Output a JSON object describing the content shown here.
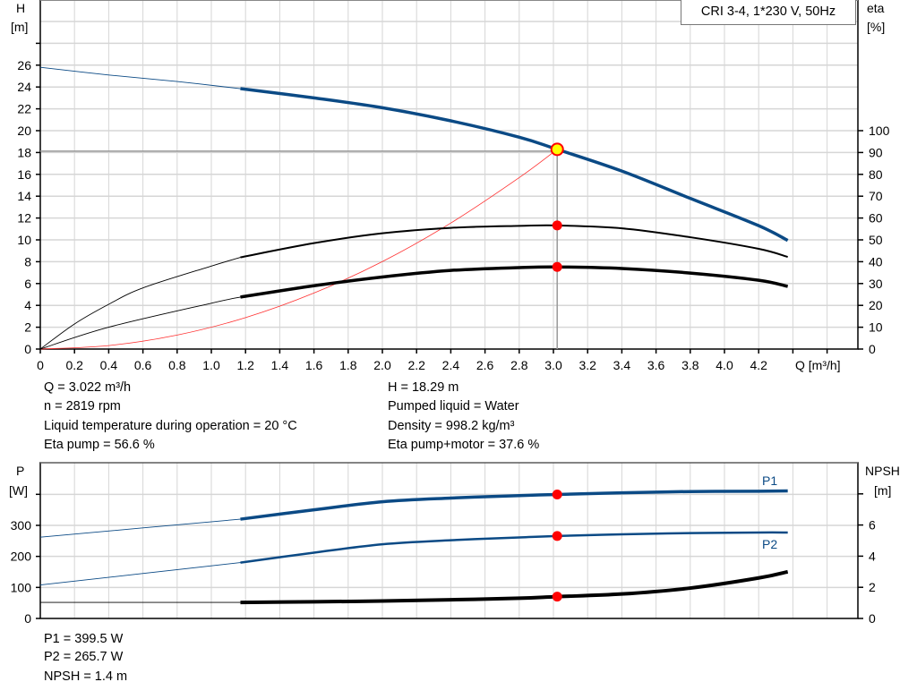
{
  "legend": "CRI 3-4, 1*230 V, 50Hz",
  "colors": {
    "head": "#0b4a85",
    "eta": "#000000",
    "system": "#ff3030",
    "marker": "#ff0000",
    "op_point": "#ffff00",
    "grid": "#d6d6d6"
  },
  "chart_data": [
    {
      "type": "line",
      "xlabel": "Q [m³/h]",
      "ylabel": "H\n[m]",
      "ylabel_left": [
        "H",
        "[m]"
      ],
      "ylabel_right": [
        "eta",
        "[%]"
      ],
      "xlim": [
        0,
        4.78
      ],
      "ylim_left": [
        0,
        32
      ],
      "ylim_right": [
        0,
        131
      ],
      "grid": true,
      "x_ticks": [
        "0",
        "0.2",
        "0.4",
        "0.6",
        "0.8",
        "1.0",
        "1.2",
        "1.4",
        "1.6",
        "1.8",
        "2.0",
        "2.2",
        "2.4",
        "2.6",
        "2.8",
        "3.0",
        "3.2",
        "3.4",
        "3.6",
        "3.8",
        "4.0",
        "4.2"
      ],
      "y_ticks_left": [
        "0",
        "2",
        "4",
        "6",
        "8",
        "10",
        "12",
        "14",
        "16",
        "18",
        "20",
        "22",
        "24",
        "26"
      ],
      "y_ticks_right": [
        "0",
        "10",
        "20",
        "30",
        "40",
        "50",
        "60",
        "70",
        "80",
        "90",
        "100"
      ],
      "series": [
        {
          "key": "H",
          "axis": "left",
          "color": "#0b4a85",
          "x": [
            0,
            0.4,
            0.8,
            1.17,
            1.6,
            2.0,
            2.4,
            2.8,
            3.022,
            3.4,
            3.8,
            4.2,
            4.37
          ],
          "y": [
            25.8,
            25.1,
            24.5,
            23.85,
            23.0,
            22.1,
            20.9,
            19.4,
            18.29,
            16.3,
            13.8,
            11.3,
            9.95
          ]
        },
        {
          "key": "eta_pump",
          "axis": "right",
          "color": "#000000",
          "x": [
            0,
            0.2,
            0.4,
            0.6,
            1.0,
            1.17,
            1.6,
            2.0,
            2.4,
            2.8,
            3.022,
            3.4,
            3.8,
            4.2,
            4.37
          ],
          "y": [
            0,
            11.5,
            20.5,
            28,
            38,
            42,
            48.5,
            53,
            55.5,
            56.4,
            56.6,
            55.3,
            51.2,
            45.9,
            42.2
          ]
        },
        {
          "key": "eta_pump_motor",
          "axis": "right",
          "color": "#000000",
          "x": [
            0,
            0.4,
            1.0,
            1.17,
            1.6,
            2.0,
            2.4,
            2.8,
            3.022,
            3.4,
            3.8,
            4.2,
            4.37
          ],
          "y": [
            0,
            10,
            21,
            23.8,
            29,
            33,
            36,
            37.3,
            37.6,
            36.9,
            34.8,
            31.5,
            28.7
          ]
        },
        {
          "key": "system_curve",
          "axis": "left",
          "color": "#ff3030",
          "x": [
            0,
            0.4,
            0.8,
            1.2,
            1.6,
            2.0,
            2.4,
            2.8,
            3.022
          ],
          "y": [
            0,
            0.32,
            1.28,
            2.88,
            5.13,
            8.01,
            11.54,
            15.7,
            18.29
          ]
        }
      ],
      "operating_point": {
        "Q": 3.022,
        "H": 18.29,
        "eta_pump": 56.6,
        "eta_pump_motor": 37.6
      }
    },
    {
      "type": "line",
      "ylabel_left": [
        "P",
        "[W]"
      ],
      "ylabel_right": [
        "NPSH",
        "[m]"
      ],
      "xlim": [
        0,
        4.78
      ],
      "ylim_left": [
        0,
        400
      ],
      "ylim_right": [
        0,
        8
      ],
      "grid": true,
      "y_ticks_left": [
        "0",
        "100",
        "200",
        "300"
      ],
      "y_ticks_right": [
        "0",
        "2",
        "4",
        "6"
      ],
      "series": [
        {
          "key": "P1",
          "name": "P1",
          "axis": "left",
          "color": "#0b4a85",
          "x": [
            0,
            1.17,
            1.6,
            2.0,
            2.4,
            2.8,
            3.022,
            3.4,
            3.8,
            4.2,
            4.37
          ],
          "y": [
            262,
            320,
            350,
            376,
            388,
            396,
            399.5,
            405,
            409,
            410,
            411
          ]
        },
        {
          "key": "P2",
          "name": "P2",
          "axis": "left",
          "color": "#0b4a85",
          "x": [
            0,
            1.17,
            1.6,
            2.0,
            2.4,
            2.8,
            3.022,
            3.4,
            3.8,
            4.2,
            4.37
          ],
          "y": [
            108,
            180,
            212,
            239,
            252,
            261,
            265.7,
            271,
            275,
            277,
            277
          ]
        },
        {
          "key": "NPSH",
          "axis": "right",
          "color": "#000000",
          "x": [
            0,
            1.17,
            1.6,
            2.0,
            2.4,
            2.8,
            3.022,
            3.4,
            3.8,
            4.2,
            4.37
          ],
          "y": [
            1.03,
            1.03,
            1.07,
            1.12,
            1.2,
            1.3,
            1.4,
            1.57,
            1.95,
            2.6,
            3.0
          ]
        }
      ],
      "operating_point": {
        "P1": 399.5,
        "P2": 265.7,
        "NPSH": 1.4
      }
    }
  ],
  "info_top": {
    "left": [
      "Q = 3.022 m³/h",
      "n = 2819 rpm",
      "Liquid temperature during operation = 20 °C",
      "Eta pump = 56.6 %"
    ],
    "right": [
      "H = 18.29 m",
      "Pumped liquid = Water",
      "Density = 998.2 kg/m³",
      "Eta pump+motor = 37.6 %"
    ]
  },
  "info_bottom": [
    "P1 = 399.5 W",
    "P2 = 265.7 W",
    "NPSH = 1.4 m"
  ]
}
